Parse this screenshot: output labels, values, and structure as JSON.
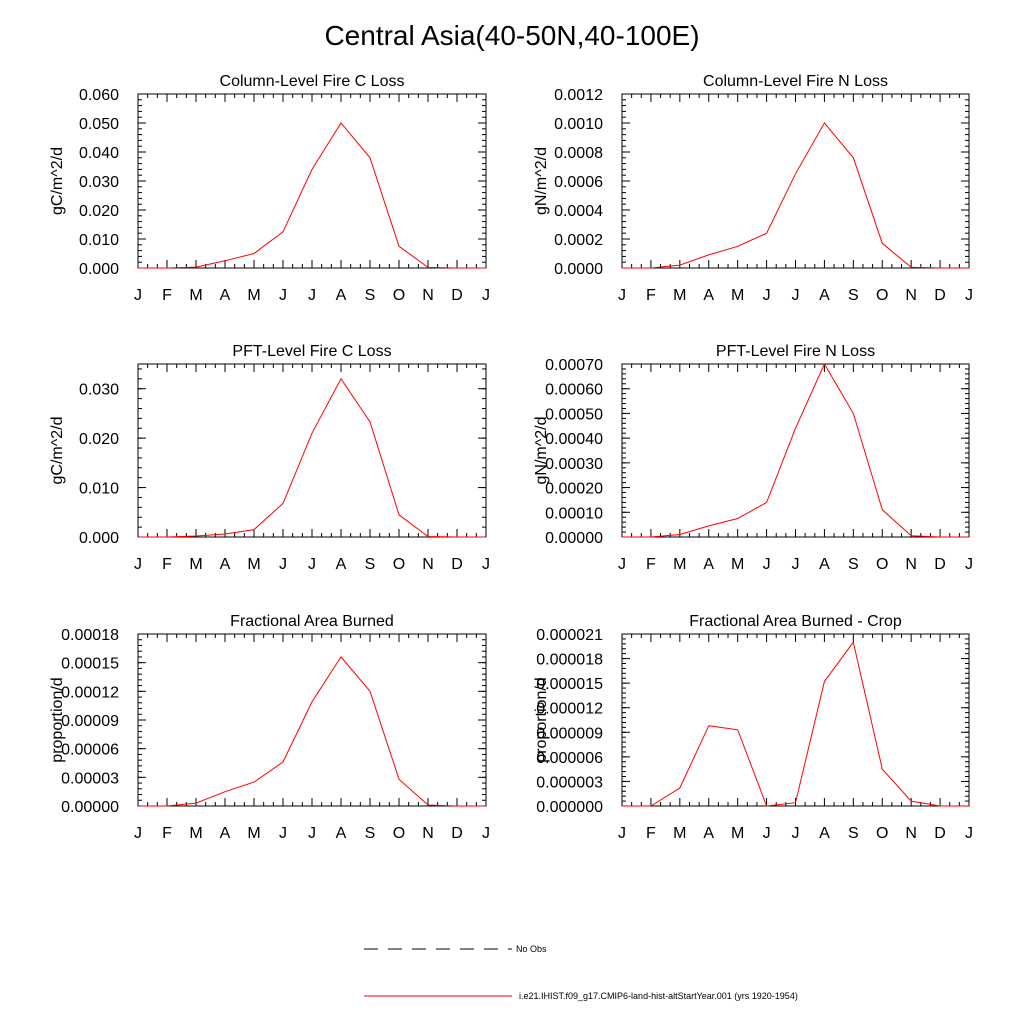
{
  "page": {
    "title": "Central Asia(40-50N,40-100E)"
  },
  "legend": {
    "items": [
      {
        "label": "No Obs",
        "style": "dashed",
        "color": "#000000"
      },
      {
        "label": "i.e21.IHIST.f09_g17.CMIP6-land-hist-altStartYear.001 (yrs 1920-1954)",
        "style": "solid",
        "color": "#ff0000"
      }
    ]
  },
  "chart_data": [
    {
      "type": "line",
      "title": "Column-Level Fire C Loss",
      "ylabel": "gC/m^2/d",
      "categories": [
        "J",
        "F",
        "M",
        "A",
        "M",
        "J",
        "J",
        "A",
        "S",
        "O",
        "N",
        "D",
        "J"
      ],
      "ylim": [
        0,
        0.06
      ],
      "yticks": [
        "0.000",
        "0.010",
        "0.020",
        "0.030",
        "0.040",
        "0.050",
        "0.060"
      ],
      "series": [
        {
          "color": "#ff0000",
          "values": [
            0,
            0,
            0.0003,
            0.0025,
            0.005,
            0.0125,
            0.034,
            0.05,
            0.038,
            0.0075,
            0.0002,
            0,
            0
          ]
        }
      ]
    },
    {
      "type": "line",
      "title": "Column-Level Fire N Loss",
      "ylabel": "gN/m^2/d",
      "categories": [
        "J",
        "F",
        "M",
        "A",
        "M",
        "J",
        "J",
        "A",
        "S",
        "O",
        "N",
        "D",
        "J"
      ],
      "ylim": [
        0,
        0.0012
      ],
      "yticks": [
        "0.0000",
        "0.0002",
        "0.0004",
        "0.0006",
        "0.0008",
        "0.0010",
        "0.0012"
      ],
      "series": [
        {
          "color": "#ff0000",
          "values": [
            0,
            0,
            2e-05,
            9e-05,
            0.00015,
            0.00024,
            0.00065,
            0.001,
            0.00076,
            0.00017,
            5e-06,
            0,
            0
          ]
        }
      ]
    },
    {
      "type": "line",
      "title": "PFT-Level Fire C Loss",
      "ylabel": "gC/m^2/d",
      "categories": [
        "J",
        "F",
        "M",
        "A",
        "M",
        "J",
        "J",
        "A",
        "S",
        "O",
        "N",
        "D",
        "J"
      ],
      "ylim": [
        0,
        0.035
      ],
      "yticks": [
        "0.000",
        "0.010",
        "0.020",
        "0.030"
      ],
      "series": [
        {
          "color": "#ff0000",
          "values": [
            0,
            0,
            0.0002,
            0.0006,
            0.0015,
            0.0068,
            0.021,
            0.032,
            0.0233,
            0.0045,
            0.0001,
            0,
            0
          ]
        }
      ]
    },
    {
      "type": "line",
      "title": "PFT-Level Fire N Loss",
      "ylabel": "gN/m^2/d",
      "categories": [
        "J",
        "F",
        "M",
        "A",
        "M",
        "J",
        "J",
        "A",
        "S",
        "O",
        "N",
        "D",
        "J"
      ],
      "ylim": [
        0,
        0.0007
      ],
      "yticks": [
        "0.00000",
        "0.00010",
        "0.00020",
        "0.00030",
        "0.00040",
        "0.00050",
        "0.00060",
        "0.00070"
      ],
      "series": [
        {
          "color": "#ff0000",
          "values": [
            0,
            0,
            1e-05,
            4.5e-05,
            7.5e-05,
            0.00014,
            0.00044,
            0.0007,
            0.0005,
            0.00011,
            5e-06,
            0,
            0
          ]
        }
      ]
    },
    {
      "type": "line",
      "title": "Fractional Area Burned",
      "ylabel": "proportion/d",
      "categories": [
        "J",
        "F",
        "M",
        "A",
        "M",
        "J",
        "J",
        "A",
        "S",
        "O",
        "N",
        "D",
        "J"
      ],
      "ylim": [
        0,
        0.00018
      ],
      "yticks": [
        "0.00000",
        "0.00003",
        "0.00006",
        "0.00009",
        "0.00012",
        "0.00015",
        "0.00018"
      ],
      "series": [
        {
          "color": "#ff0000",
          "values": [
            0,
            0,
            3e-06,
            1.5e-05,
            2.5e-05,
            4.6e-05,
            0.000109,
            0.000156,
            0.00012,
            2.8e-05,
            1e-06,
            0,
            0
          ]
        }
      ]
    },
    {
      "type": "line",
      "title": "Fractional Area Burned - Crop",
      "ylabel": "proportion/d",
      "categories": [
        "J",
        "F",
        "M",
        "A",
        "M",
        "J",
        "J",
        "A",
        "S",
        "O",
        "N",
        "D",
        "J"
      ],
      "ylim": [
        0,
        2.1e-05
      ],
      "yticks": [
        "0.000000",
        "0.000003",
        "0.000006",
        "0.000009",
        "0.000012",
        "0.000015",
        "0.000018",
        "0.000021"
      ],
      "series": [
        {
          "color": "#ff0000",
          "values": [
            0,
            0,
            2.2e-06,
            9.8e-06,
            9.3e-06,
            0,
            4e-07,
            1.52e-05,
            2e-05,
            4.5e-06,
            6e-07,
            0,
            0
          ]
        }
      ]
    }
  ]
}
